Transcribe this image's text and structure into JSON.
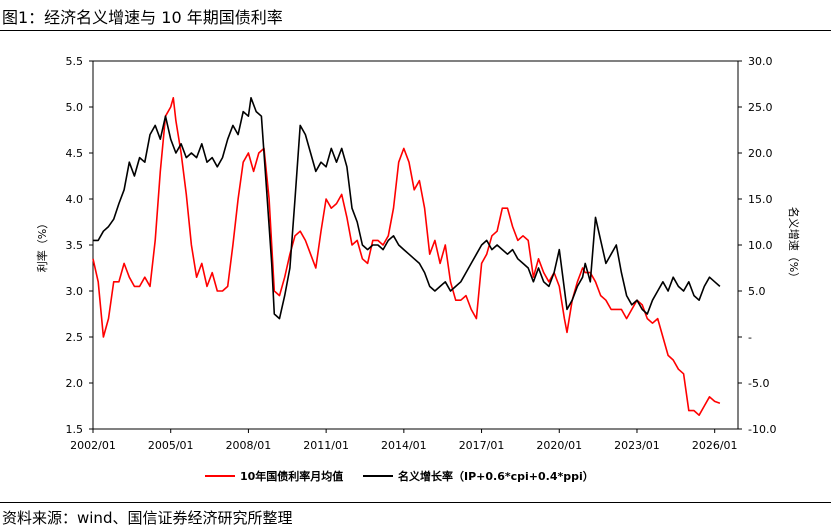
{
  "header": {
    "title": "图1：经济名义增速与 10 年期国债利率"
  },
  "footer": {
    "source": "资料来源：wind、国信证券经济研究所整理"
  },
  "chart_data": {
    "type": "line",
    "x_axis": {
      "ticks": [
        "2002/01",
        "2005/01",
        "2008/01",
        "2011/01",
        "2014/01",
        "2017/01",
        "2020/01",
        "2023/01",
        "2026/01"
      ]
    },
    "y_left": {
      "label": "利率（%）",
      "min": 1.5,
      "max": 5.5,
      "ticks": [
        "1.5",
        "2.0",
        "2.5",
        "3.0",
        "3.5",
        "4.0",
        "4.5",
        "5.0",
        "5.5"
      ]
    },
    "y_right": {
      "label": "名义增速（%）",
      "min": -10,
      "max": 30,
      "ticks": [
        "-10.0",
        "-5.0",
        "-",
        "5.0",
        "10.0",
        "15.0",
        "20.0",
        "25.0",
        "30.0"
      ]
    },
    "colors": {
      "red": "#ff0000",
      "black": "#000000"
    },
    "series": [
      {
        "name": "10年国债利率月均值",
        "axis": "left",
        "color": "#ff0000",
        "points": [
          [
            2002.0,
            3.35
          ],
          [
            2002.2,
            3.1
          ],
          [
            2002.4,
            2.5
          ],
          [
            2002.6,
            2.7
          ],
          [
            2002.8,
            3.1
          ],
          [
            2003.0,
            3.1
          ],
          [
            2003.2,
            3.3
          ],
          [
            2003.4,
            3.15
          ],
          [
            2003.6,
            3.05
          ],
          [
            2003.8,
            3.05
          ],
          [
            2004.0,
            3.15
          ],
          [
            2004.2,
            3.05
          ],
          [
            2004.4,
            3.55
          ],
          [
            2004.6,
            4.3
          ],
          [
            2004.8,
            4.9
          ],
          [
            2005.0,
            5.0
          ],
          [
            2005.1,
            5.1
          ],
          [
            2005.2,
            4.85
          ],
          [
            2005.4,
            4.5
          ],
          [
            2005.6,
            4.05
          ],
          [
            2005.8,
            3.5
          ],
          [
            2006.0,
            3.15
          ],
          [
            2006.2,
            3.3
          ],
          [
            2006.4,
            3.05
          ],
          [
            2006.6,
            3.2
          ],
          [
            2006.8,
            3.0
          ],
          [
            2007.0,
            3.0
          ],
          [
            2007.2,
            3.05
          ],
          [
            2007.4,
            3.5
          ],
          [
            2007.6,
            4.0
          ],
          [
            2007.8,
            4.4
          ],
          [
            2008.0,
            4.5
          ],
          [
            2008.2,
            4.3
          ],
          [
            2008.4,
            4.5
          ],
          [
            2008.6,
            4.55
          ],
          [
            2008.8,
            4.0
          ],
          [
            2009.0,
            3.0
          ],
          [
            2009.2,
            2.95
          ],
          [
            2009.4,
            3.15
          ],
          [
            2009.6,
            3.4
          ],
          [
            2009.8,
            3.6
          ],
          [
            2010.0,
            3.65
          ],
          [
            2010.2,
            3.55
          ],
          [
            2010.4,
            3.4
          ],
          [
            2010.6,
            3.25
          ],
          [
            2010.8,
            3.65
          ],
          [
            2011.0,
            4.0
          ],
          [
            2011.2,
            3.9
          ],
          [
            2011.4,
            3.95
          ],
          [
            2011.6,
            4.05
          ],
          [
            2011.8,
            3.8
          ],
          [
            2012.0,
            3.5
          ],
          [
            2012.2,
            3.55
          ],
          [
            2012.4,
            3.35
          ],
          [
            2012.6,
            3.3
          ],
          [
            2012.8,
            3.55
          ],
          [
            2013.0,
            3.55
          ],
          [
            2013.2,
            3.5
          ],
          [
            2013.4,
            3.6
          ],
          [
            2013.6,
            3.9
          ],
          [
            2013.8,
            4.4
          ],
          [
            2014.0,
            4.55
          ],
          [
            2014.2,
            4.4
          ],
          [
            2014.4,
            4.1
          ],
          [
            2014.6,
            4.2
          ],
          [
            2014.8,
            3.9
          ],
          [
            2015.0,
            3.4
          ],
          [
            2015.2,
            3.55
          ],
          [
            2015.4,
            3.3
          ],
          [
            2015.6,
            3.5
          ],
          [
            2015.8,
            3.1
          ],
          [
            2016.0,
            2.9
          ],
          [
            2016.2,
            2.9
          ],
          [
            2016.4,
            2.95
          ],
          [
            2016.6,
            2.8
          ],
          [
            2016.8,
            2.7
          ],
          [
            2017.0,
            3.3
          ],
          [
            2017.2,
            3.4
          ],
          [
            2017.4,
            3.6
          ],
          [
            2017.6,
            3.65
          ],
          [
            2017.8,
            3.9
          ],
          [
            2018.0,
            3.9
          ],
          [
            2018.2,
            3.7
          ],
          [
            2018.4,
            3.55
          ],
          [
            2018.6,
            3.6
          ],
          [
            2018.8,
            3.55
          ],
          [
            2019.0,
            3.15
          ],
          [
            2019.2,
            3.35
          ],
          [
            2019.4,
            3.2
          ],
          [
            2019.6,
            3.1
          ],
          [
            2019.8,
            3.2
          ],
          [
            2020.0,
            3.05
          ],
          [
            2020.2,
            2.7
          ],
          [
            2020.3,
            2.55
          ],
          [
            2020.5,
            2.9
          ],
          [
            2020.7,
            3.1
          ],
          [
            2020.9,
            3.25
          ],
          [
            2021.0,
            3.2
          ],
          [
            2021.2,
            3.2
          ],
          [
            2021.4,
            3.1
          ],
          [
            2021.6,
            2.95
          ],
          [
            2021.8,
            2.9
          ],
          [
            2022.0,
            2.8
          ],
          [
            2022.2,
            2.8
          ],
          [
            2022.4,
            2.8
          ],
          [
            2022.6,
            2.7
          ],
          [
            2022.8,
            2.8
          ],
          [
            2023.0,
            2.9
          ],
          [
            2023.2,
            2.85
          ],
          [
            2023.4,
            2.7
          ],
          [
            2023.6,
            2.65
          ],
          [
            2023.8,
            2.7
          ],
          [
            2024.0,
            2.5
          ],
          [
            2024.2,
            2.3
          ],
          [
            2024.4,
            2.25
          ],
          [
            2024.6,
            2.15
          ],
          [
            2024.8,
            2.1
          ],
          [
            2025.0,
            1.7
          ],
          [
            2025.2,
            1.7
          ],
          [
            2025.4,
            1.65
          ],
          [
            2025.6,
            1.75
          ],
          [
            2025.8,
            1.85
          ],
          [
            2026.0,
            1.8
          ],
          [
            2026.2,
            1.78
          ]
        ]
      },
      {
        "name": "名义增长率（IP+0.6*cpi+0.4*ppi）",
        "axis": "right",
        "color": "#000000",
        "points": [
          [
            2002.0,
            10.5
          ],
          [
            2002.2,
            10.5
          ],
          [
            2002.4,
            11.5
          ],
          [
            2002.6,
            12.0
          ],
          [
            2002.8,
            12.8
          ],
          [
            2003.0,
            14.5
          ],
          [
            2003.2,
            16.0
          ],
          [
            2003.4,
            19.0
          ],
          [
            2003.6,
            17.5
          ],
          [
            2003.8,
            19.5
          ],
          [
            2004.0,
            19.0
          ],
          [
            2004.2,
            22.0
          ],
          [
            2004.4,
            23.0
          ],
          [
            2004.6,
            21.5
          ],
          [
            2004.8,
            24.0
          ],
          [
            2005.0,
            21.5
          ],
          [
            2005.2,
            20.0
          ],
          [
            2005.4,
            21.0
          ],
          [
            2005.6,
            19.5
          ],
          [
            2005.8,
            20.0
          ],
          [
            2006.0,
            19.5
          ],
          [
            2006.2,
            21.0
          ],
          [
            2006.4,
            19.0
          ],
          [
            2006.6,
            19.5
          ],
          [
            2006.8,
            18.5
          ],
          [
            2007.0,
            19.5
          ],
          [
            2007.2,
            21.5
          ],
          [
            2007.4,
            23.0
          ],
          [
            2007.6,
            22.0
          ],
          [
            2007.8,
            24.5
          ],
          [
            2008.0,
            24.0
          ],
          [
            2008.1,
            26.0
          ],
          [
            2008.3,
            24.5
          ],
          [
            2008.5,
            24.0
          ],
          [
            2008.7,
            16.0
          ],
          [
            2008.9,
            8.0
          ],
          [
            2009.0,
            2.5
          ],
          [
            2009.2,
            2.0
          ],
          [
            2009.4,
            4.5
          ],
          [
            2009.6,
            7.5
          ],
          [
            2009.8,
            15.0
          ],
          [
            2010.0,
            23.0
          ],
          [
            2010.2,
            22.0
          ],
          [
            2010.4,
            20.0
          ],
          [
            2010.6,
            18.0
          ],
          [
            2010.8,
            19.0
          ],
          [
            2011.0,
            18.5
          ],
          [
            2011.2,
            20.5
          ],
          [
            2011.4,
            19.0
          ],
          [
            2011.6,
            20.5
          ],
          [
            2011.8,
            18.5
          ],
          [
            2012.0,
            14.0
          ],
          [
            2012.2,
            12.5
          ],
          [
            2012.4,
            10.0
          ],
          [
            2012.6,
            9.5
          ],
          [
            2012.8,
            10.0
          ],
          [
            2013.0,
            10.0
          ],
          [
            2013.2,
            9.5
          ],
          [
            2013.4,
            10.5
          ],
          [
            2013.6,
            11.0
          ],
          [
            2013.8,
            10.0
          ],
          [
            2014.0,
            9.5
          ],
          [
            2014.2,
            9.0
          ],
          [
            2014.4,
            8.5
          ],
          [
            2014.6,
            8.0
          ],
          [
            2014.8,
            7.0
          ],
          [
            2015.0,
            5.5
          ],
          [
            2015.2,
            5.0
          ],
          [
            2015.4,
            5.5
          ],
          [
            2015.6,
            6.0
          ],
          [
            2015.8,
            5.0
          ],
          [
            2016.0,
            5.5
          ],
          [
            2016.2,
            6.0
          ],
          [
            2016.4,
            7.0
          ],
          [
            2016.6,
            8.0
          ],
          [
            2016.8,
            9.0
          ],
          [
            2017.0,
            10.0
          ],
          [
            2017.2,
            10.5
          ],
          [
            2017.4,
            9.5
          ],
          [
            2017.6,
            10.0
          ],
          [
            2017.8,
            9.5
          ],
          [
            2018.0,
            9.0
          ],
          [
            2018.2,
            9.5
          ],
          [
            2018.4,
            8.5
          ],
          [
            2018.6,
            8.0
          ],
          [
            2018.8,
            7.5
          ],
          [
            2019.0,
            6.0
          ],
          [
            2019.2,
            7.5
          ],
          [
            2019.4,
            6.0
          ],
          [
            2019.6,
            5.5
          ],
          [
            2019.8,
            7.0
          ],
          [
            2020.0,
            9.5
          ],
          [
            2020.3,
            3.0
          ],
          [
            2020.5,
            4.0
          ],
          [
            2020.7,
            5.5
          ],
          [
            2020.9,
            6.5
          ],
          [
            2021.0,
            8.0
          ],
          [
            2021.1,
            7.0
          ],
          [
            2021.2,
            6.0
          ],
          [
            2021.4,
            13.0
          ],
          [
            2021.6,
            10.5
          ],
          [
            2021.8,
            8.0
          ],
          [
            2022.0,
            9.0
          ],
          [
            2022.2,
            10.0
          ],
          [
            2022.4,
            7.0
          ],
          [
            2022.6,
            4.5
          ],
          [
            2022.8,
            3.5
          ],
          [
            2023.0,
            4.0
          ],
          [
            2023.2,
            3.0
          ],
          [
            2023.4,
            2.5
          ],
          [
            2023.6,
            4.0
          ],
          [
            2023.8,
            5.0
          ],
          [
            2024.0,
            6.0
          ],
          [
            2024.2,
            5.0
          ],
          [
            2024.4,
            6.5
          ],
          [
            2024.6,
            5.5
          ],
          [
            2024.8,
            5.0
          ],
          [
            2025.0,
            6.0
          ],
          [
            2025.2,
            4.5
          ],
          [
            2025.4,
            4.0
          ],
          [
            2025.6,
            5.5
          ],
          [
            2025.8,
            6.5
          ],
          [
            2026.0,
            6.0
          ],
          [
            2026.2,
            5.5
          ]
        ]
      }
    ],
    "legend": {
      "position": "bottom"
    }
  }
}
